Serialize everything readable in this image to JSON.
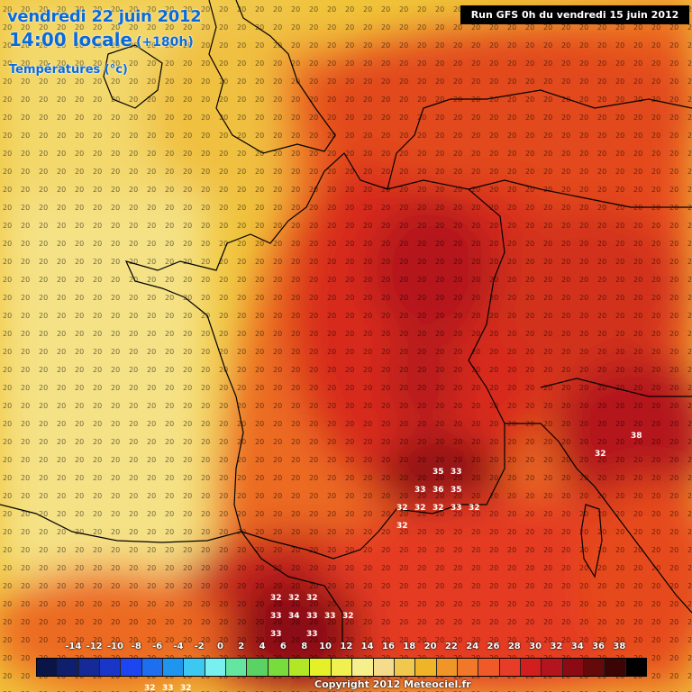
{
  "header": {
    "date": "vendredi 22 juin 2012",
    "time": "14:00 locale",
    "horizon": "(+180h)",
    "parameter": "Températures (°c)"
  },
  "run_info": "Run GFS 0h du vendredi 15 juin 2012",
  "copyright": "Copyright 2012 Meteociel.fr",
  "legend": {
    "labels": [
      "-14",
      "-12",
      "-10",
      "-8",
      "-6",
      "-4",
      "-2",
      "0",
      "2",
      "4",
      "6",
      "8",
      "10",
      "12",
      "14",
      "16",
      "18",
      "20",
      "22",
      "24",
      "26",
      "28",
      "30",
      "32",
      "34",
      "36",
      "38"
    ],
    "colors": [
      "#0a1446",
      "#101e6e",
      "#152a96",
      "#1a36c8",
      "#1e46f0",
      "#1e6ef0",
      "#1e96f0",
      "#3cc8f0",
      "#78f0f0",
      "#64e6a0",
      "#5ad264",
      "#78dc3c",
      "#b4e628",
      "#e6f028",
      "#f0f050",
      "#f5f08c",
      "#f5dc8c",
      "#f0c850",
      "#f0b428",
      "#f09628",
      "#f07828",
      "#f05a28",
      "#e63c28",
      "#d21e1e",
      "#b4141e",
      "#8c0a14",
      "#640a0a",
      "#3c0505",
      "#000000"
    ]
  },
  "map_values": [
    {
      "label": "35",
      "color": "#ffffff"
    },
    {
      "label": "33",
      "color": "#ffffff"
    },
    {
      "label": "36",
      "color": "#ffffff"
    },
    {
      "label": "32",
      "color": "#ffffff"
    },
    {
      "label": "34",
      "color": "#ffffff"
    },
    {
      "label": "38",
      "color": "#ffffff"
    }
  ]
}
